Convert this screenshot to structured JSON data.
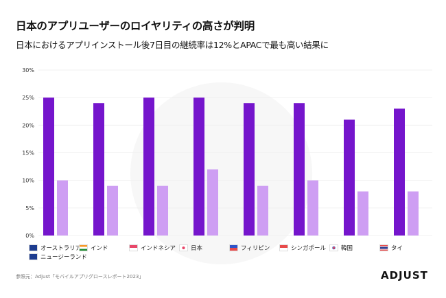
{
  "header": {
    "title": "日本のアプリユーザーのロイヤリティの高さが判明",
    "subtitle": "日本におけるアプリインストール後7日目の継続率は12%とAPACで最も高い結果に"
  },
  "footer": {
    "source": "参照元：Adjust「モバイルアプリグロースレポート2023」",
    "logo": "ADJUST"
  },
  "colors": {
    "series_dark": "#7515cc",
    "series_light": "#ce9ef3"
  },
  "chart_data": {
    "type": "bar",
    "title": "日本におけるアプリインストール後7日目の継続率は12%とAPACで最も高い結果に",
    "xlabel": "",
    "ylabel": "",
    "ylim": [
      0,
      30
    ],
    "yticks": [
      "0%",
      "5%",
      "10%",
      "15%",
      "20%",
      "25%",
      "30%"
    ],
    "grid": true,
    "categories": [
      "オーストラリア&ニュージーランド",
      "インド",
      "インドネシア",
      "日本",
      "フィリピン",
      "シンガポール",
      "韓国",
      "タイ"
    ],
    "series": [
      {
        "name": "series-1",
        "color": "#7515cc",
        "values": [
          25,
          24,
          25,
          25,
          24,
          24,
          21,
          23
        ]
      },
      {
        "name": "series-2",
        "color": "#ce9ef3",
        "values": [
          10,
          9,
          9,
          12,
          9,
          10,
          8,
          8
        ]
      }
    ]
  },
  "legend": [
    {
      "label": "オーストラリア&",
      "label2": "ニュージーランド",
      "flag": "au-nz-flag-icon"
    },
    {
      "label": "インド",
      "flag": "india-flag-icon"
    },
    {
      "label": "インドネシア",
      "flag": "indonesia-flag-icon"
    },
    {
      "label": "日本",
      "flag": "japan-flag-icon"
    },
    {
      "label": "フィリピン",
      "flag": "philippines-flag-icon"
    },
    {
      "label": "シンガポール",
      "flag": "singapore-flag-icon"
    },
    {
      "label": "韓国",
      "flag": "korea-flag-icon"
    },
    {
      "label": "タイ",
      "flag": "thailand-flag-icon"
    }
  ]
}
